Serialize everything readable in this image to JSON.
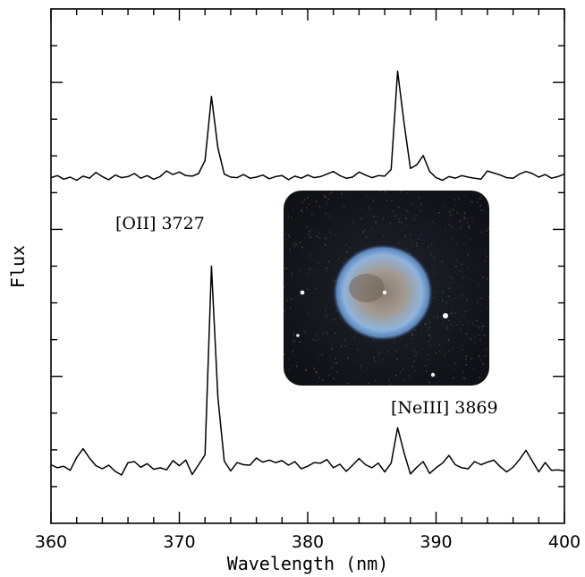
{
  "chart_data": {
    "type": "line",
    "xlabel": "Wavelength (nm)",
    "ylabel": "Flux",
    "xlim": [
      360,
      400
    ],
    "xticks": [
      360,
      370,
      380,
      390,
      400
    ],
    "xtick_labels": [
      "360",
      "370",
      "380",
      "390",
      "400"
    ],
    "ylim": [
      0,
      1
    ],
    "y_ticks_labeled": false,
    "grid": false,
    "legend": "none",
    "annotations": [
      {
        "text": "[OII] 3727",
        "x": 372.7
      },
      {
        "text": "[NeIII] 3869",
        "x": 386.9
      }
    ],
    "inset": {
      "content": "nebula-photo",
      "colors": {
        "background": "#14161c",
        "shell": "#7fa8d8",
        "core": "#b9a48c"
      }
    },
    "series": [
      {
        "x": [
          360.0,
          360.5,
          361.0,
          361.5,
          362.0,
          362.5,
          363.0,
          363.5,
          364.0,
          364.5,
          365.0,
          365.5,
          366.0,
          366.5,
          367.0,
          367.5,
          368.0,
          368.5,
          369.0,
          369.5,
          370.0,
          370.5,
          371.0,
          371.5,
          372.0,
          372.5,
          373.0,
          373.5,
          374.0,
          374.5,
          375.0,
          375.5,
          376.0,
          376.5,
          377.0,
          377.5,
          378.0,
          378.5,
          379.0,
          379.5,
          380.0,
          380.5,
          381.0,
          381.5,
          382.0,
          382.5,
          383.0,
          383.5,
          384.0,
          384.5,
          385.0,
          385.5,
          386.0,
          386.5,
          387.0,
          387.5,
          388.0,
          388.5,
          389.0,
          389.5,
          390.0,
          390.5,
          391.0,
          391.5,
          392.0,
          392.5,
          393.0,
          393.5,
          394.0,
          394.5,
          395.0,
          395.5,
          396.0,
          396.5,
          397.0,
          397.5,
          398.0,
          398.5,
          399.0,
          399.5,
          400.0
        ],
        "y": [
          0.672,
          0.676,
          0.669,
          0.673,
          0.667,
          0.675,
          0.671,
          0.682,
          0.674,
          0.668,
          0.677,
          0.672,
          0.674,
          0.68,
          0.671,
          0.676,
          0.669,
          0.674,
          0.685,
          0.678,
          0.683,
          0.676,
          0.675,
          0.68,
          0.705,
          0.83,
          0.73,
          0.679,
          0.673,
          0.672,
          0.678,
          0.671,
          0.673,
          0.677,
          0.67,
          0.674,
          0.676,
          0.668,
          0.675,
          0.671,
          0.677,
          0.672,
          0.674,
          0.679,
          0.684,
          0.676,
          0.671,
          0.673,
          0.683,
          0.677,
          0.672,
          0.676,
          0.675,
          0.688,
          0.879,
          0.78,
          0.69,
          0.697,
          0.715,
          0.684,
          0.672,
          0.667,
          0.674,
          0.671,
          0.676,
          0.673,
          0.671,
          0.669,
          0.685,
          0.681,
          0.677,
          0.672,
          0.671,
          0.679,
          0.684,
          0.68,
          0.673,
          0.678,
          0.671,
          0.674,
          0.679
        ]
      },
      {
        "x": [
          360.0,
          360.5,
          361.0,
          361.5,
          362.0,
          362.5,
          363.0,
          363.5,
          364.0,
          364.5,
          365.0,
          365.5,
          366.0,
          366.5,
          367.0,
          367.5,
          368.0,
          368.5,
          369.0,
          369.5,
          370.0,
          370.5,
          371.0,
          371.5,
          372.0,
          372.5,
          373.0,
          373.5,
          374.0,
          374.5,
          375.0,
          375.5,
          376.0,
          376.5,
          377.0,
          377.5,
          378.0,
          378.5,
          379.0,
          379.5,
          380.0,
          380.5,
          381.0,
          381.5,
          382.0,
          382.5,
          383.0,
          383.5,
          384.0,
          384.5,
          385.0,
          385.5,
          386.0,
          386.5,
          387.0,
          387.5,
          388.0,
          388.5,
          389.0,
          389.5,
          390.0,
          390.5,
          391.0,
          391.5,
          392.0,
          392.5,
          393.0,
          393.5,
          394.0,
          394.5,
          395.0,
          395.5,
          396.0,
          396.5,
          397.0,
          397.5,
          398.0,
          398.5,
          399.0,
          399.5,
          400.0
        ],
        "y": [
          0.114,
          0.108,
          0.111,
          0.103,
          0.128,
          0.145,
          0.127,
          0.112,
          0.106,
          0.113,
          0.101,
          0.094,
          0.118,
          0.12,
          0.109,
          0.116,
          0.105,
          0.108,
          0.104,
          0.122,
          0.112,
          0.123,
          0.095,
          0.114,
          0.133,
          0.5,
          0.245,
          0.121,
          0.102,
          0.118,
          0.114,
          0.113,
          0.127,
          0.119,
          0.123,
          0.118,
          0.122,
          0.113,
          0.12,
          0.106,
          0.111,
          0.118,
          0.117,
          0.124,
          0.108,
          0.115,
          0.101,
          0.113,
          0.126,
          0.114,
          0.108,
          0.117,
          0.1,
          0.117,
          0.186,
          0.138,
          0.096,
          0.109,
          0.12,
          0.097,
          0.108,
          0.117,
          0.132,
          0.114,
          0.108,
          0.106,
          0.12,
          0.114,
          0.119,
          0.123,
          0.11,
          0.1,
          0.109,
          0.124,
          0.142,
          0.121,
          0.1,
          0.118,
          0.103,
          0.104,
          0.102
        ]
      }
    ]
  }
}
